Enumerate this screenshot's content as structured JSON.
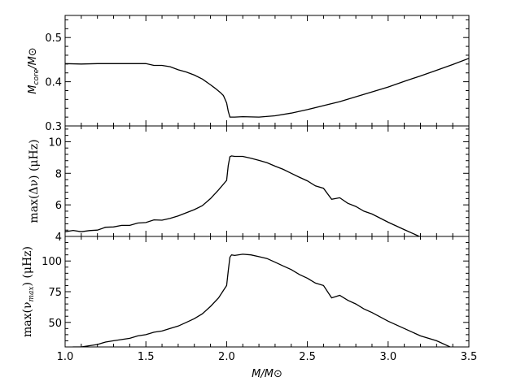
{
  "chart_data": [
    {
      "type": "line",
      "xlabel": "M/M⊙",
      "ylabel": "M_core/M⊙",
      "xlim": [
        1.0,
        3.5
      ],
      "ylim": [
        0.3,
        0.55
      ],
      "xticks": [
        1.0,
        1.5,
        2.0,
        2.5,
        3.0,
        3.5
      ],
      "xtick_labels": [
        "1.0",
        "1.5",
        "2.0",
        "2.5",
        "3.0",
        "3.5"
      ],
      "yticks": [
        0.3,
        0.4,
        0.5
      ],
      "ytick_labels": [
        "0.3",
        "0.4",
        "0.5"
      ],
      "grid": false,
      "series": [
        {
          "x": [
            1.0,
            1.1,
            1.2,
            1.3,
            1.4,
            1.45,
            1.5,
            1.55,
            1.6,
            1.65,
            1.7,
            1.75,
            1.8,
            1.85,
            1.9,
            1.93,
            1.96,
            1.98,
            2.0,
            2.01,
            2.02,
            2.05,
            2.1,
            2.2,
            2.3,
            2.4,
            2.5,
            2.6,
            2.7,
            2.8,
            2.9,
            3.0,
            3.1,
            3.2,
            3.3,
            3.4,
            3.5
          ],
          "y": [
            0.441,
            0.44,
            0.441,
            0.441,
            0.441,
            0.441,
            0.441,
            0.437,
            0.437,
            0.434,
            0.427,
            0.422,
            0.415,
            0.406,
            0.393,
            0.385,
            0.376,
            0.369,
            0.352,
            0.333,
            0.32,
            0.32,
            0.321,
            0.32,
            0.323,
            0.329,
            0.337,
            0.346,
            0.355,
            0.366,
            0.377,
            0.388,
            0.401,
            0.413,
            0.426,
            0.439,
            0.453
          ]
        }
      ]
    },
    {
      "type": "line",
      "xlabel": "M/M⊙",
      "ylabel": "max(Δν) (μHz)",
      "xlim": [
        1.0,
        3.5
      ],
      "ylim": [
        4,
        11
      ],
      "xticks": [
        1.0,
        1.5,
        2.0,
        2.5,
        3.0,
        3.5
      ],
      "yticks": [
        4,
        6,
        8,
        10
      ],
      "ytick_labels": [
        "4",
        "6",
        "8",
        "10"
      ],
      "grid": false,
      "series": [
        {
          "x": [
            1.0,
            1.05,
            1.1,
            1.15,
            1.2,
            1.25,
            1.3,
            1.35,
            1.4,
            1.45,
            1.5,
            1.55,
            1.6,
            1.65,
            1.7,
            1.75,
            1.8,
            1.85,
            1.9,
            1.95,
            2.0,
            2.01,
            2.02,
            2.03,
            2.05,
            2.1,
            2.15,
            2.2,
            2.25,
            2.3,
            2.35,
            2.4,
            2.45,
            2.5,
            2.55,
            2.6,
            2.65,
            2.7,
            2.75,
            2.8,
            2.85,
            2.9,
            3.0,
            3.1,
            3.2
          ],
          "y": [
            4.3,
            4.38,
            4.3,
            4.37,
            4.4,
            4.58,
            4.6,
            4.7,
            4.7,
            4.85,
            4.88,
            5.05,
            5.03,
            5.15,
            5.3,
            5.5,
            5.7,
            5.95,
            6.4,
            6.95,
            7.55,
            8.5,
            9.05,
            9.1,
            9.07,
            9.07,
            8.95,
            8.82,
            8.67,
            8.45,
            8.25,
            8.0,
            7.75,
            7.52,
            7.2,
            7.05,
            6.35,
            6.45,
            6.1,
            5.9,
            5.6,
            5.42,
            4.9,
            4.43,
            3.97
          ]
        }
      ]
    },
    {
      "type": "line",
      "xlabel": "M/M⊙",
      "ylabel": "max(ν_max) (μHz)",
      "xlim": [
        1.0,
        3.5
      ],
      "ylim": [
        30,
        120
      ],
      "xticks": [
        1.0,
        1.5,
        2.0,
        2.5,
        3.0,
        3.5
      ],
      "xtick_labels": [
        "1.0",
        "1.5",
        "2.0",
        "2.5",
        "3.0",
        "3.5"
      ],
      "yticks": [
        50,
        75,
        100
      ],
      "ytick_labels": [
        "50",
        "75",
        "100"
      ],
      "grid": false,
      "series": [
        {
          "x": [
            1.0,
            1.05,
            1.1,
            1.15,
            1.2,
            1.25,
            1.3,
            1.35,
            1.4,
            1.45,
            1.5,
            1.55,
            1.6,
            1.65,
            1.7,
            1.75,
            1.8,
            1.85,
            1.9,
            1.95,
            2.0,
            2.01,
            2.02,
            2.03,
            2.05,
            2.1,
            2.15,
            2.2,
            2.25,
            2.3,
            2.35,
            2.4,
            2.45,
            2.5,
            2.55,
            2.6,
            2.65,
            2.7,
            2.75,
            2.8,
            2.85,
            2.9,
            3.0,
            3.1,
            3.2,
            3.3,
            3.4
          ],
          "y": [
            29,
            30,
            30,
            31,
            32,
            34,
            35,
            36,
            37,
            39,
            40,
            42,
            43,
            45,
            47,
            50,
            53,
            57,
            63,
            70,
            80,
            92,
            103,
            105,
            104.5,
            105.5,
            105,
            103.5,
            102,
            99,
            96,
            93,
            89,
            86,
            82,
            80,
            70,
            72,
            68,
            65,
            61,
            58,
            51,
            45,
            39,
            35,
            29
          ]
        }
      ]
    }
  ],
  "labels": {
    "x_axis": "M/M⊙",
    "top_y_main": "M",
    "top_y_sub": "core",
    "top_y_tail": "/M⊙",
    "middle_y": "max(Δν) (μHz)",
    "bottom_y_head": "max(ν",
    "bottom_y_sub": "max",
    "bottom_y_tail": ") (μHz)"
  },
  "colors": {
    "line": "#000000",
    "axes": "#000000",
    "background": "#ffffff"
  }
}
